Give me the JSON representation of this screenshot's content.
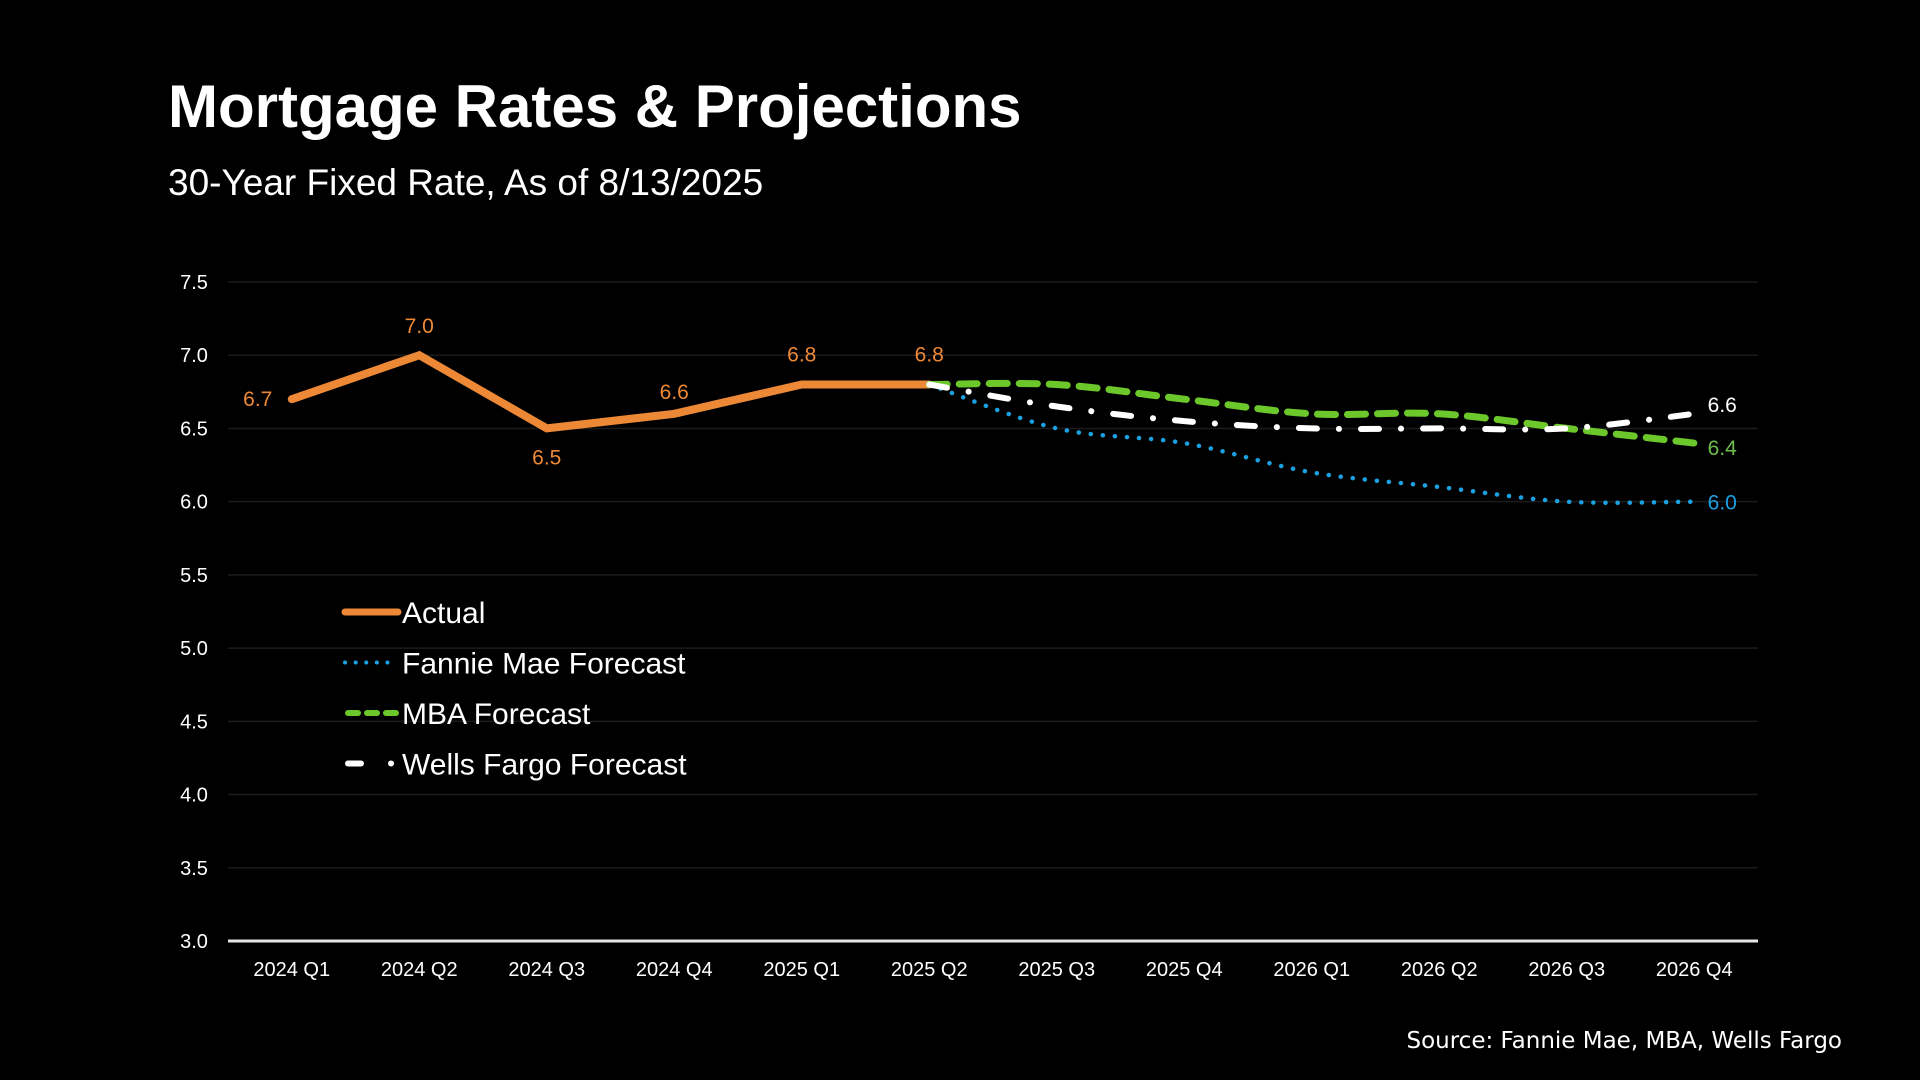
{
  "header": {
    "title": "Mortgage Rates & Projections",
    "subtitle": "30-Year Fixed Rate, As of 8/13/2025"
  },
  "footer": {
    "source": "Source: Fannie Mae, MBA, Wells Fargo"
  },
  "chart_data": {
    "type": "line",
    "title": "Mortgage Rates & Projections",
    "subtitle": "30-Year Fixed Rate, As of 8/13/2025",
    "xlabel": "",
    "ylabel": "",
    "ylim": [
      3.0,
      7.5
    ],
    "yticks": [
      "3.0",
      "3.5",
      "4.0",
      "4.5",
      "5.0",
      "5.5",
      "6.0",
      "6.5",
      "7.0",
      "7.5"
    ],
    "categories": [
      "2024 Q1",
      "2024 Q2",
      "2024 Q3",
      "2024 Q4",
      "2025 Q1",
      "2025 Q2",
      "2025 Q3",
      "2025 Q4",
      "2026 Q1",
      "2026 Q2",
      "2026 Q3",
      "2026 Q4"
    ],
    "grid": true,
    "legend_position": "middle-left",
    "series": [
      {
        "name": "Actual",
        "color": "#ED8936",
        "style": "solid",
        "values": [
          6.7,
          7.0,
          6.5,
          6.6,
          6.8,
          6.8,
          null,
          null,
          null,
          null,
          null,
          null
        ],
        "data_labels": [
          "6.7",
          "7.0",
          "6.5",
          "6.6",
          "6.8",
          "6.8",
          null,
          null,
          null,
          null,
          null,
          null
        ]
      },
      {
        "name": "Fannie Mae Forecast",
        "color": "#1BA1E2",
        "style": "dotted",
        "values": [
          null,
          null,
          null,
          null,
          null,
          6.8,
          6.5,
          6.4,
          6.2,
          6.1,
          6.0,
          6.0
        ],
        "end_label": "6.0"
      },
      {
        "name": "MBA Forecast",
        "color": "#6CC72B",
        "style": "dashed",
        "values": [
          null,
          null,
          null,
          null,
          null,
          6.8,
          6.8,
          6.7,
          6.6,
          6.6,
          6.5,
          6.4
        ],
        "end_label": "6.4"
      },
      {
        "name": "Wells Fargo Forecast",
        "color": "#FFFFFF",
        "style": "dash-dot",
        "values": [
          null,
          null,
          null,
          null,
          null,
          6.8,
          6.65,
          6.55,
          6.5,
          6.5,
          6.5,
          6.6
        ],
        "end_label": "6.6"
      }
    ]
  }
}
